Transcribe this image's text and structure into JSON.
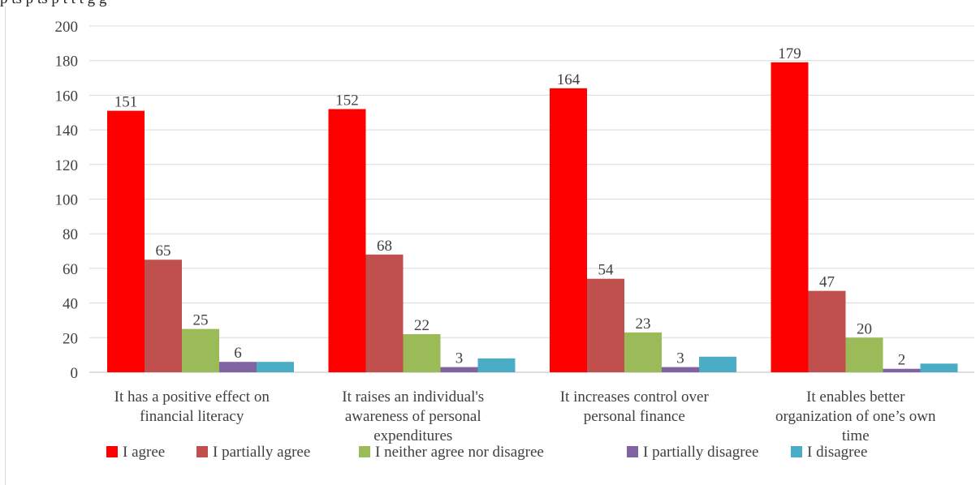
{
  "caption_fragment": "p   ts   p   ts  p    t    t   t      g       g",
  "chart_data": {
    "type": "bar",
    "title": "",
    "xlabel": "",
    "ylabel": "",
    "ylim": [
      0,
      200
    ],
    "y_ticks": [
      0,
      20,
      40,
      60,
      80,
      100,
      120,
      140,
      160,
      180,
      200
    ],
    "grid": true,
    "legend_position": "bottom",
    "categories": [
      [
        "It has a positive effect on",
        "financial literacy"
      ],
      [
        "It raises an individual's",
        "awareness of personal",
        "expenditures"
      ],
      [
        "It increases control over",
        "personal finance"
      ],
      [
        "It enables better",
        "organization of one’s own",
        "time"
      ]
    ],
    "series": [
      {
        "name": "I agree",
        "color": "#ff0000",
        "values": [
          151,
          152,
          164,
          179
        ],
        "labels": [
          "151",
          "152",
          "164",
          "179"
        ]
      },
      {
        "name": "I partially agree",
        "color": "#c0504d",
        "values": [
          65,
          68,
          54,
          47
        ],
        "labels": [
          "65",
          "68",
          "54",
          "47"
        ]
      },
      {
        "name": "I neither agree nor disagree",
        "color": "#9bbb59",
        "values": [
          25,
          22,
          23,
          20
        ],
        "labels": [
          "25",
          "22",
          "23",
          "20"
        ]
      },
      {
        "name": "I partially disagree",
        "color": "#8064a2",
        "values": [
          6,
          3,
          3,
          2
        ],
        "labels": [
          "6",
          "3",
          "3",
          "2"
        ]
      },
      {
        "name": "I disagree",
        "color": "#4bacc6",
        "values": [
          6,
          8,
          9,
          5
        ],
        "labels": [
          "",
          "",
          "",
          ""
        ]
      }
    ]
  }
}
